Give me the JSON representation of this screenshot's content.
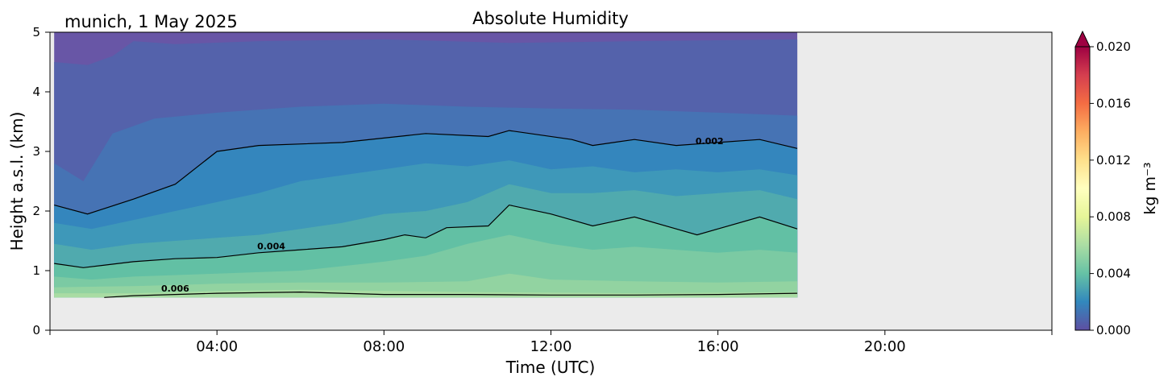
{
  "chart_data": {
    "type": "heatmap",
    "title": "Absolute Humidity",
    "subtitle": "munich, 1 May 2025",
    "xlabel": "Time (UTC)",
    "ylabel": "Height a.s.l. (km)",
    "x_ticks": [
      "04:00",
      "08:00",
      "12:00",
      "16:00",
      "20:00"
    ],
    "x_tick_hours": [
      4,
      8,
      12,
      16,
      20
    ],
    "xlim_hours": [
      0,
      24
    ],
    "ylim": [
      0,
      5
    ],
    "y_ticks": [
      0,
      1,
      2,
      3,
      4,
      5
    ],
    "data_extent": {
      "start_hour": 0.1,
      "end_hour": 17.9,
      "bottom_km": 0.55,
      "top_km": 5
    },
    "colorbar": {
      "label": "kg m⁻³",
      "vmin": 0.0,
      "vmax": 0.02,
      "ticks": [
        0.0,
        0.004,
        0.008,
        0.012,
        0.016,
        0.02
      ],
      "tick_labels": [
        "0.000",
        "0.004",
        "0.008",
        "0.012",
        "0.016",
        "0.020"
      ],
      "extend": "max",
      "colormap": "Spectral_r",
      "colors": [
        "#5e4fa2",
        "#3288bd",
        "#66c2a5",
        "#abdda4",
        "#e6f598",
        "#ffffbf",
        "#fee08b",
        "#fdae61",
        "#f46d43",
        "#d53e4f",
        "#9e0142"
      ]
    },
    "contours": [
      {
        "level": 0.002,
        "label": "0.002",
        "label_at": [
          15.8,
          3.12
        ],
        "points": [
          [
            0.1,
            2.1
          ],
          [
            0.9,
            1.95
          ],
          [
            2,
            2.2
          ],
          [
            3,
            2.45
          ],
          [
            4,
            3.0
          ],
          [
            5,
            3.1
          ],
          [
            7,
            3.15
          ],
          [
            9,
            3.3
          ],
          [
            10.5,
            3.25
          ],
          [
            11,
            3.35
          ],
          [
            12.5,
            3.2
          ],
          [
            13,
            3.1
          ],
          [
            14,
            3.2
          ],
          [
            15,
            3.1
          ],
          [
            16,
            3.15
          ],
          [
            17,
            3.2
          ],
          [
            17.9,
            3.05
          ]
        ]
      },
      {
        "level": 0.004,
        "label": "0.004",
        "label_at": [
          5.3,
          1.36
        ],
        "points": [
          [
            0.1,
            1.12
          ],
          [
            0.8,
            1.05
          ],
          [
            2,
            1.15
          ],
          [
            3,
            1.2
          ],
          [
            4,
            1.22
          ],
          [
            5,
            1.3
          ],
          [
            6,
            1.35
          ],
          [
            7,
            1.4
          ],
          [
            8,
            1.52
          ],
          [
            8.5,
            1.6
          ],
          [
            9,
            1.55
          ],
          [
            9.5,
            1.72
          ],
          [
            10.5,
            1.75
          ],
          [
            11,
            2.1
          ],
          [
            12,
            1.95
          ],
          [
            12.5,
            1.85
          ],
          [
            13,
            1.75
          ],
          [
            14,
            1.9
          ],
          [
            15,
            1.7
          ],
          [
            15.5,
            1.6
          ],
          [
            16,
            1.7
          ],
          [
            17,
            1.9
          ],
          [
            17.9,
            1.7
          ]
        ]
      },
      {
        "level": 0.006,
        "label": "0.006",
        "label_at": [
          3.0,
          0.65
        ],
        "points": [
          [
            1.3,
            0.55
          ],
          [
            2,
            0.58
          ],
          [
            4,
            0.62
          ],
          [
            6,
            0.64
          ],
          [
            8,
            0.6
          ],
          [
            10,
            0.6
          ],
          [
            12,
            0.59
          ],
          [
            14,
            0.59
          ],
          [
            16,
            0.6
          ],
          [
            17.9,
            0.62
          ]
        ]
      }
    ],
    "bands": [
      {
        "name": "level-1",
        "color": "#6856a6",
        "boundary": [
          [
            0.1,
            5
          ],
          [
            17.9,
            5
          ]
        ]
      },
      {
        "name": "level-2",
        "color": "#5462ab",
        "boundary": [
          [
            0.1,
            4.5
          ],
          [
            0.9,
            4.45
          ],
          [
            1.5,
            4.6
          ],
          [
            2,
            4.85
          ],
          [
            3,
            4.8
          ],
          [
            5,
            4.85
          ],
          [
            8,
            4.88
          ],
          [
            11,
            4.82
          ],
          [
            14,
            4.85
          ],
          [
            17.9,
            4.88
          ]
        ]
      },
      {
        "name": "level-3",
        "color": "#4673b4",
        "boundary": [
          [
            0.1,
            2.8
          ],
          [
            0.8,
            2.5
          ],
          [
            1.5,
            3.3
          ],
          [
            2.5,
            3.55
          ],
          [
            4,
            3.65
          ],
          [
            6,
            3.75
          ],
          [
            8,
            3.8
          ],
          [
            10,
            3.75
          ],
          [
            12,
            3.72
          ],
          [
            14,
            3.7
          ],
          [
            16,
            3.65
          ],
          [
            17.9,
            3.6
          ]
        ]
      },
      {
        "name": "level-4",
        "color": "#3486bd",
        "boundary": [
          [
            0.1,
            2.1
          ],
          [
            0.9,
            1.95
          ],
          [
            2,
            2.2
          ],
          [
            3,
            2.45
          ],
          [
            4,
            3.0
          ],
          [
            5,
            3.1
          ],
          [
            7,
            3.15
          ],
          [
            9,
            3.3
          ],
          [
            10.5,
            3.25
          ],
          [
            11,
            3.35
          ],
          [
            12.5,
            3.2
          ],
          [
            13,
            3.1
          ],
          [
            14,
            3.2
          ],
          [
            15,
            3.1
          ],
          [
            16,
            3.15
          ],
          [
            17,
            3.2
          ],
          [
            17.9,
            3.05
          ]
        ]
      },
      {
        "name": "level-5",
        "color": "#3e98b9",
        "boundary": [
          [
            0.1,
            1.8
          ],
          [
            1,
            1.7
          ],
          [
            2,
            1.85
          ],
          [
            3,
            2.0
          ],
          [
            4,
            2.15
          ],
          [
            5,
            2.3
          ],
          [
            6,
            2.5
          ],
          [
            7,
            2.6
          ],
          [
            8,
            2.7
          ],
          [
            9,
            2.8
          ],
          [
            10,
            2.75
          ],
          [
            11,
            2.85
          ],
          [
            12,
            2.7
          ],
          [
            13,
            2.75
          ],
          [
            14,
            2.65
          ],
          [
            15,
            2.7
          ],
          [
            16,
            2.65
          ],
          [
            17,
            2.7
          ],
          [
            17.9,
            2.6
          ]
        ]
      },
      {
        "name": "level-6",
        "color": "#50aaae",
        "boundary": [
          [
            0.1,
            1.45
          ],
          [
            1,
            1.35
          ],
          [
            2,
            1.45
          ],
          [
            3,
            1.5
          ],
          [
            4,
            1.55
          ],
          [
            5,
            1.6
          ],
          [
            6,
            1.7
          ],
          [
            7,
            1.8
          ],
          [
            8,
            1.95
          ],
          [
            9,
            2.0
          ],
          [
            10,
            2.15
          ],
          [
            11,
            2.45
          ],
          [
            12,
            2.3
          ],
          [
            13,
            2.3
          ],
          [
            14,
            2.35
          ],
          [
            15,
            2.25
          ],
          [
            16,
            2.3
          ],
          [
            17,
            2.35
          ],
          [
            17.9,
            2.2
          ]
        ]
      },
      {
        "name": "level-7",
        "color": "#62c0a4",
        "boundary": [
          [
            0.1,
            1.12
          ],
          [
            0.8,
            1.05
          ],
          [
            2,
            1.15
          ],
          [
            3,
            1.2
          ],
          [
            4,
            1.22
          ],
          [
            5,
            1.3
          ],
          [
            6,
            1.35
          ],
          [
            7,
            1.4
          ],
          [
            8,
            1.52
          ],
          [
            8.5,
            1.6
          ],
          [
            9,
            1.55
          ],
          [
            9.5,
            1.72
          ],
          [
            10.5,
            1.75
          ],
          [
            11,
            2.1
          ],
          [
            12,
            1.95
          ],
          [
            12.5,
            1.85
          ],
          [
            13,
            1.75
          ],
          [
            14,
            1.9
          ],
          [
            15,
            1.7
          ],
          [
            15.5,
            1.6
          ],
          [
            16,
            1.7
          ],
          [
            17,
            1.9
          ],
          [
            17.9,
            1.7
          ]
        ]
      },
      {
        "name": "level-8",
        "color": "#7bcaa3",
        "boundary": [
          [
            0.1,
            0.9
          ],
          [
            1,
            0.85
          ],
          [
            2,
            0.9
          ],
          [
            4,
            0.95
          ],
          [
            6,
            1.0
          ],
          [
            8,
            1.15
          ],
          [
            9,
            1.25
          ],
          [
            10,
            1.45
          ],
          [
            11,
            1.6
          ],
          [
            12,
            1.45
          ],
          [
            13,
            1.35
          ],
          [
            14,
            1.4
          ],
          [
            15,
            1.35
          ],
          [
            16,
            1.3
          ],
          [
            17,
            1.35
          ],
          [
            17.9,
            1.3
          ]
        ]
      },
      {
        "name": "level-9",
        "color": "#92d3a1",
        "boundary": [
          [
            0.1,
            0.72
          ],
          [
            2,
            0.74
          ],
          [
            4,
            0.78
          ],
          [
            6,
            0.8
          ],
          [
            8,
            0.8
          ],
          [
            10,
            0.82
          ],
          [
            11,
            0.95
          ],
          [
            12,
            0.85
          ],
          [
            14,
            0.82
          ],
          [
            16,
            0.8
          ],
          [
            17.9,
            0.82
          ]
        ]
      },
      {
        "name": "level-10",
        "color": "#a9dca3",
        "boundary": [
          [
            0.1,
            0.62
          ],
          [
            2,
            0.62
          ],
          [
            4,
            0.66
          ],
          [
            6,
            0.68
          ],
          [
            8,
            0.66
          ],
          [
            10,
            0.64
          ],
          [
            12,
            0.63
          ],
          [
            14,
            0.62
          ],
          [
            16,
            0.63
          ],
          [
            17.9,
            0.64
          ]
        ]
      }
    ]
  }
}
